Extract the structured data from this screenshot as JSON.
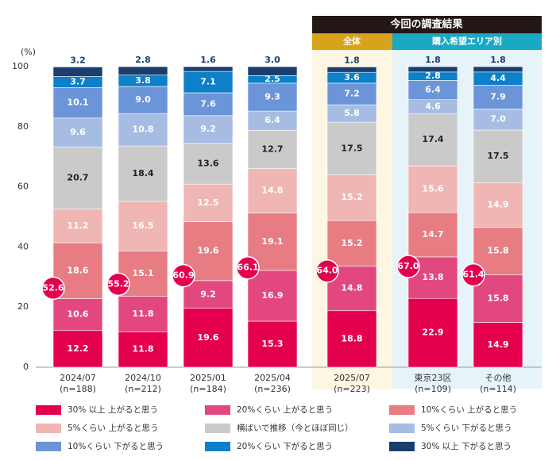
{
  "chart_data": {
    "type": "stacked_bar",
    "y_unit": "(%)",
    "header": "今回の調査結果",
    "groups": [
      "全体",
      "購入希望エリア別"
    ],
    "categories": [
      "2024/07",
      "2024/10",
      "2025/01",
      "2025/04",
      "2025/07",
      "東京23区",
      "その他"
    ],
    "sample_sizes": [
      "(n=188)",
      "(n=212)",
      "(n=184)",
      "(n=236)",
      "(n=223)",
      "(n=109)",
      "(n=114)"
    ],
    "ylim": [
      0,
      100
    ],
    "yticks": [
      0,
      20,
      40,
      60,
      80,
      100
    ],
    "series": [
      {
        "name": "30% 以上 上がると思う",
        "color": "#e4004f",
        "label_color": "#ffffff",
        "values": [
          12.2,
          11.8,
          19.6,
          15.3,
          18.8,
          22.9,
          14.9
        ],
        "value_labels": [
          "12.2",
          "11.8",
          "19.6",
          "15.3",
          "18.8",
          "22.9",
          "14.9"
        ]
      },
      {
        "name": "20%くらい 上がると思う",
        "color": "#e2487f",
        "label_color": "#ffffff",
        "values": [
          10.6,
          11.8,
          9.2,
          16.9,
          14.8,
          13.8,
          15.8
        ],
        "value_labels": [
          "10.6",
          "11.8",
          "9.2",
          "16.9",
          "14.8",
          "13.8",
          "15.8"
        ]
      },
      {
        "name": "10%くらい 上がると思う",
        "color": "#e77d83",
        "label_color": "#ffffff",
        "values": [
          18.6,
          15.1,
          19.6,
          19.1,
          15.2,
          14.7,
          15.8
        ],
        "value_labels": [
          "18.6",
          "15.1",
          "19.6",
          "19.1",
          "15.2",
          "14.7",
          "15.8"
        ]
      },
      {
        "name": "5%くらい 上がると思う",
        "color": "#efb6b4",
        "label_color": "#ffffff",
        "values": [
          11.2,
          16.5,
          12.5,
          14.8,
          15.2,
          15.6,
          14.9
        ],
        "value_labels": [
          "11.2",
          "16.5",
          "12.5",
          "14.8",
          "15.2",
          "15.6",
          "14.9"
        ]
      },
      {
        "name": "横ばいで推移（今とほぼ同じ）",
        "color": "#cacaca",
        "label_color": "#222222",
        "values": [
          20.7,
          18.4,
          13.6,
          12.7,
          17.5,
          17.4,
          17.5
        ],
        "value_labels": [
          "20.7",
          "18.4",
          "13.6",
          "12.7",
          "17.5",
          "17.4",
          "17.5"
        ]
      },
      {
        "name": "5%くらい 下がると思う",
        "color": "#a7bce2",
        "label_color": "#ffffff",
        "values": [
          9.6,
          10.8,
          9.2,
          6.4,
          5.8,
          4.6,
          7.0
        ],
        "value_labels": [
          "9.6",
          "10.8",
          "9.2",
          "6.4",
          "5.8",
          "4.6",
          "7.0"
        ]
      },
      {
        "name": "10%くらい 下がると思う",
        "color": "#6c94d8",
        "label_color": "#ffffff",
        "values": [
          10.1,
          9.0,
          7.6,
          9.3,
          7.2,
          6.4,
          7.9
        ],
        "value_labels": [
          "10.1",
          "9.0",
          "7.6",
          "9.3",
          "7.2",
          "6.4",
          "7.9"
        ]
      },
      {
        "name": "20%くらい 下がると思う",
        "color": "#0c80c8",
        "label_color": "#ffffff",
        "values": [
          3.7,
          3.8,
          7.1,
          2.5,
          3.6,
          2.8,
          4.4
        ],
        "value_labels": [
          "3.7",
          "3.8",
          "7.1",
          "2.5",
          "3.6",
          "2.8",
          "4.4"
        ]
      },
      {
        "name": "30% 以上 下がると思う",
        "color": "#1c3e6e",
        "label_color": "#1c3e6e",
        "label_outside": true,
        "values": [
          3.2,
          2.8,
          1.6,
          3.0,
          1.8,
          1.8,
          1.8
        ],
        "value_labels": [
          "3.2",
          "2.8",
          "1.6",
          "3.0",
          "1.8",
          "1.8",
          "1.8"
        ]
      }
    ],
    "rise_totals": {
      "color": "#e4004f",
      "values": [
        52.6,
        55.2,
        60.9,
        66.1,
        64.0,
        67.0,
        61.4
      ],
      "value_labels": [
        "52.6",
        "55.2",
        "60.9",
        "66.1",
        "64.0",
        "67.0",
        "61.4"
      ]
    }
  }
}
